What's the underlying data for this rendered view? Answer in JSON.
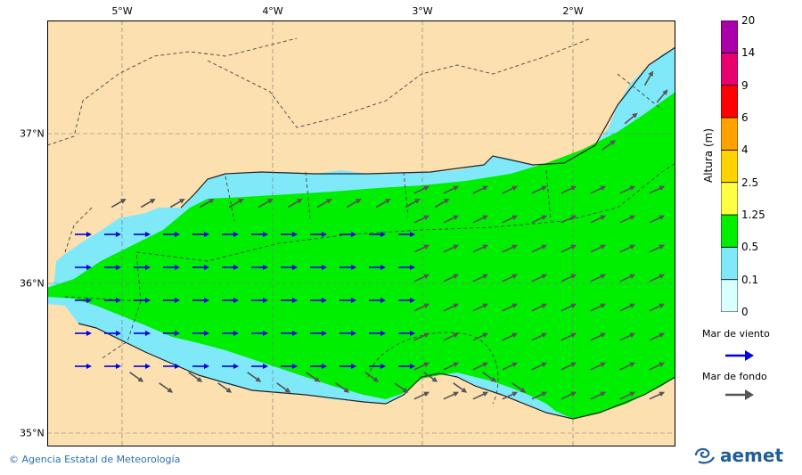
{
  "map": {
    "lon_labels": [
      "5°W",
      "4°W",
      "3°W",
      "2°W"
    ],
    "lat_labels": [
      "37°N",
      "36°N",
      "35°N"
    ]
  },
  "legend": {
    "title": "Altura (m)",
    "levels": [
      "0",
      "0.1",
      "0.5",
      "1.25",
      "2.5",
      "4",
      "6",
      "9",
      "14",
      "20"
    ],
    "colors": [
      "#d9ffff",
      "#7fe9fa",
      "#00ee00",
      "#ffff44",
      "#ffd200",
      "#ffa200",
      "#ff0000",
      "#e8006e",
      "#aa00aa"
    ],
    "arrows": {
      "wind_label": "Mar de viento",
      "wind_color": "#0000dd",
      "swell_label": "Mar de fondo",
      "swell_color": "#555555"
    }
  },
  "footer": {
    "credit": "Agencia Estatal de Meteorología",
    "brand": "aemet"
  },
  "colors": {
    "land": "#fde0b0",
    "low_sea": "#7fe9fa",
    "mid_sea": "#00ee00"
  }
}
